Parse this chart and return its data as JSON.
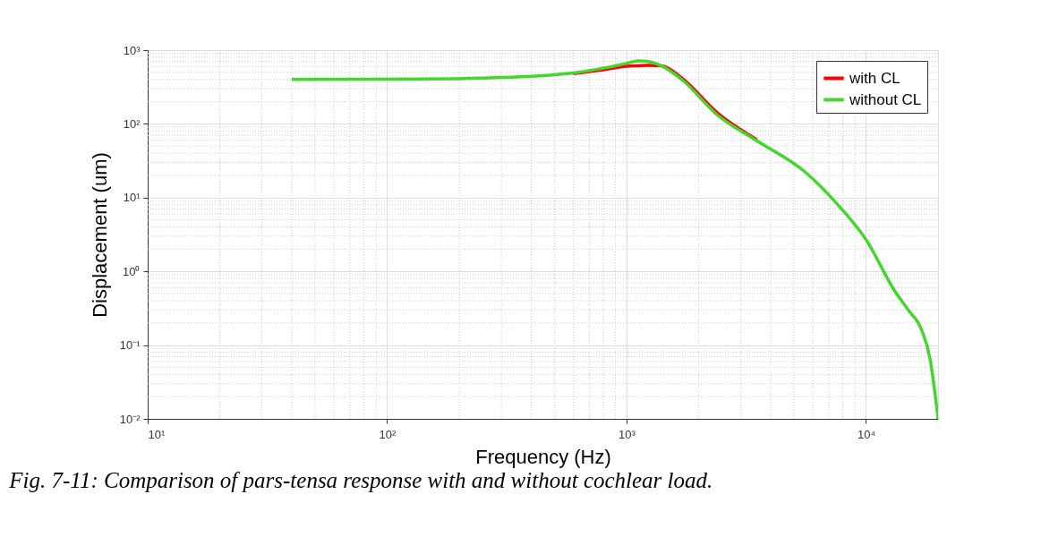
{
  "chart_data": {
    "type": "line",
    "xlabel": "Frequency (Hz)",
    "ylabel": "Displacement (um)",
    "annotations": [
      "Fig. 7-11: Comparison of pars-tensa response with and without cochlear load."
    ],
    "log": "xy",
    "grid": true,
    "legend": "top right",
    "marker": "none",
    "line_style": "solid",
    "xlim": [
      10,
      20000
    ],
    "ylim": [
      0.01,
      1000
    ],
    "xticks": [
      {
        "value": 10,
        "label": "10¹"
      },
      {
        "value": 100,
        "label": "10²"
      },
      {
        "value": 1000,
        "label": "10³"
      },
      {
        "value": 10000,
        "label": "10⁴"
      }
    ],
    "yticks": [
      {
        "value": 0.01,
        "label": "10⁻²"
      },
      {
        "value": 0.1,
        "label": "10⁻¹"
      },
      {
        "value": 1,
        "label": "10⁰"
      },
      {
        "value": 10,
        "label": "10¹"
      },
      {
        "value": 100,
        "label": "10²"
      },
      {
        "value": 1000,
        "label": "10³"
      }
    ],
    "x": [
      40,
      100,
      200,
      300,
      430,
      600,
      800,
      1000,
      1120,
      1230,
      1400,
      1700,
      2400,
      3500,
      5600,
      7600,
      10000,
      13200,
      15000,
      17000,
      18500,
      19500,
      20000
    ],
    "series": [
      {
        "name": "with CL",
        "color": "#ff0000",
        "values": [
          null,
          null,
          null,
          null,
          null,
          480,
          540,
          605,
          615,
          622,
          615,
          420,
          140,
          61,
          null,
          null,
          null,
          null,
          null,
          null,
          null,
          null,
          null
        ]
      },
      {
        "name": "without CL",
        "color": "#44d62c",
        "values": [
          400,
          402,
          410,
          425,
          447,
          490,
          570,
          660,
          716,
          700,
          610,
          400,
          131,
          59,
          21.9,
          8.1,
          2.7,
          0.54,
          0.3,
          0.166,
          0.066,
          0.02,
          0.01
        ]
      }
    ]
  }
}
